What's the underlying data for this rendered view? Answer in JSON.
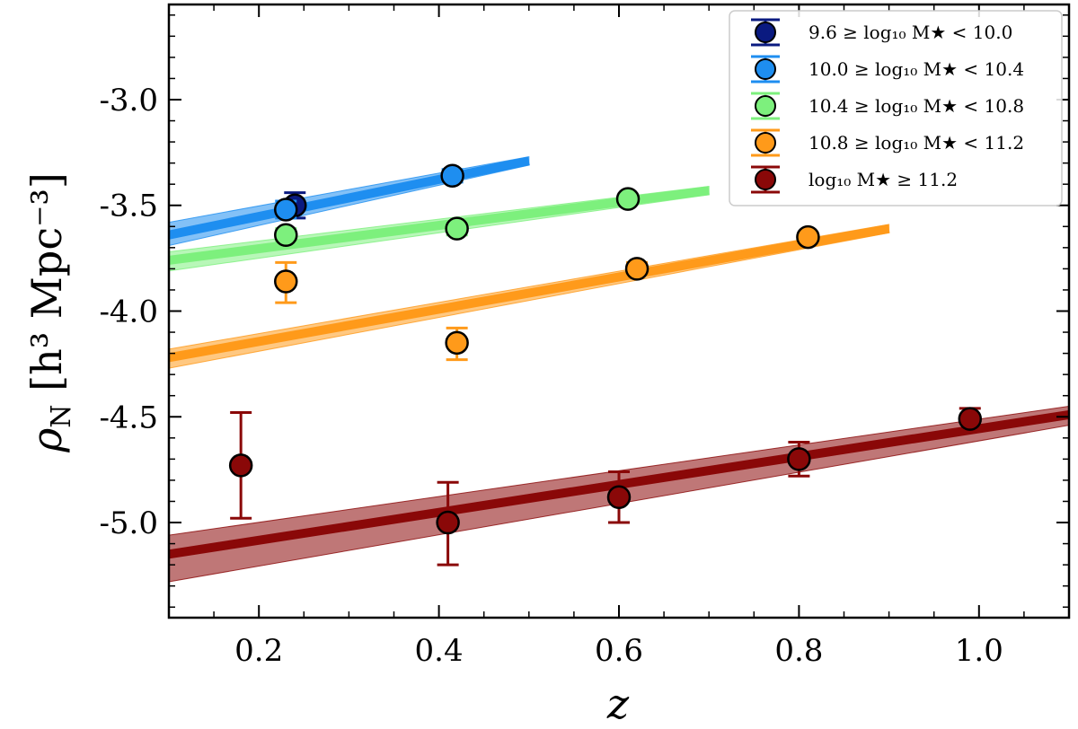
{
  "chart_data": {
    "type": "scatter",
    "title": "",
    "xlabel": "z",
    "ylabel_main": "ρ",
    "ylabel_sub": "N",
    "ylabel_rest": " [h³ Mpc⁻³]",
    "xlim": [
      0.1,
      1.1
    ],
    "ylim": [
      -5.45,
      -2.55
    ],
    "xticks": [
      0.2,
      0.4,
      0.6,
      0.8,
      1.0
    ],
    "xtick_labels": [
      "0.2",
      "0.4",
      "0.6",
      "0.8",
      "1.0"
    ],
    "yticks": [
      -3.0,
      -3.5,
      -4.0,
      -4.5,
      -5.0
    ],
    "ytick_labels": [
      "-3.0",
      "-3.5",
      "-4.0",
      "-4.5",
      "-5.0"
    ],
    "grid": false,
    "legend_position": "top-right",
    "series": [
      {
        "name": "9.6 ≥ log₁₀ M★ < 10.0",
        "color": "#0a1a80",
        "points": [
          {
            "x": 0.24,
            "y": -3.5,
            "err_lo": 0.06,
            "err_hi": 0.06
          }
        ],
        "fit": null
      },
      {
        "name": "10.0 ≥ log₁₀ M★ < 10.4",
        "color": "#1e8ef0",
        "points": [
          {
            "x": 0.23,
            "y": -3.52,
            "err_lo": 0.04,
            "err_hi": 0.04
          },
          {
            "x": 0.415,
            "y": -3.36,
            "err_lo": 0.03,
            "err_hi": 0.03
          }
        ],
        "fit": {
          "x": [
            0.1,
            0.5
          ],
          "y": [
            -3.64,
            -3.29
          ],
          "band_lo": [
            -3.69,
            -3.31
          ],
          "band_hi": [
            -3.58,
            -3.27
          ]
        }
      },
      {
        "name": "10.4 ≥ log₁₀ M★ < 10.8",
        "color": "#7df07d",
        "points": [
          {
            "x": 0.23,
            "y": -3.64,
            "err_lo": 0.03,
            "err_hi": 0.03
          },
          {
            "x": 0.42,
            "y": -3.61,
            "err_lo": 0.03,
            "err_hi": 0.03
          },
          {
            "x": 0.61,
            "y": -3.47,
            "err_lo": 0.02,
            "err_hi": 0.02
          }
        ],
        "fit": {
          "x": [
            0.1,
            0.7
          ],
          "y": [
            -3.76,
            -3.43
          ],
          "band_lo": [
            -3.81,
            -3.45
          ],
          "band_hi": [
            -3.72,
            -3.41
          ]
        }
      },
      {
        "name": "10.8 ≥ log₁₀ M★ < 11.2",
        "color": "#ff9a1a",
        "points": [
          {
            "x": 0.23,
            "y": -3.86,
            "err_lo": 0.1,
            "err_hi": 0.09
          },
          {
            "x": 0.42,
            "y": -4.15,
            "err_lo": 0.08,
            "err_hi": 0.07
          },
          {
            "x": 0.62,
            "y": -3.8,
            "err_lo": 0.03,
            "err_hi": 0.03
          },
          {
            "x": 0.81,
            "y": -3.65,
            "err_lo": 0.02,
            "err_hi": 0.02
          }
        ],
        "fit": {
          "x": [
            0.1,
            0.9
          ],
          "y": [
            -4.22,
            -3.61
          ],
          "band_lo": [
            -4.27,
            -3.63
          ],
          "band_hi": [
            -4.18,
            -3.59
          ]
        }
      },
      {
        "name": "log₁₀ M★ ≥ 11.2",
        "color": "#8a0808",
        "points": [
          {
            "x": 0.18,
            "y": -4.73,
            "err_lo": 0.25,
            "err_hi": 0.25
          },
          {
            "x": 0.41,
            "y": -5.0,
            "err_lo": 0.2,
            "err_hi": 0.19
          },
          {
            "x": 0.6,
            "y": -4.88,
            "err_lo": 0.12,
            "err_hi": 0.12
          },
          {
            "x": 0.8,
            "y": -4.7,
            "err_lo": 0.08,
            "err_hi": 0.08
          },
          {
            "x": 0.99,
            "y": -4.51,
            "err_lo": 0.05,
            "err_hi": 0.05
          }
        ],
        "fit": {
          "x": [
            0.1,
            1.1
          ],
          "y": [
            -5.15,
            -4.49
          ],
          "band_lo": [
            -5.28,
            -4.54
          ],
          "band_hi": [
            -5.06,
            -4.45
          ]
        }
      }
    ]
  }
}
